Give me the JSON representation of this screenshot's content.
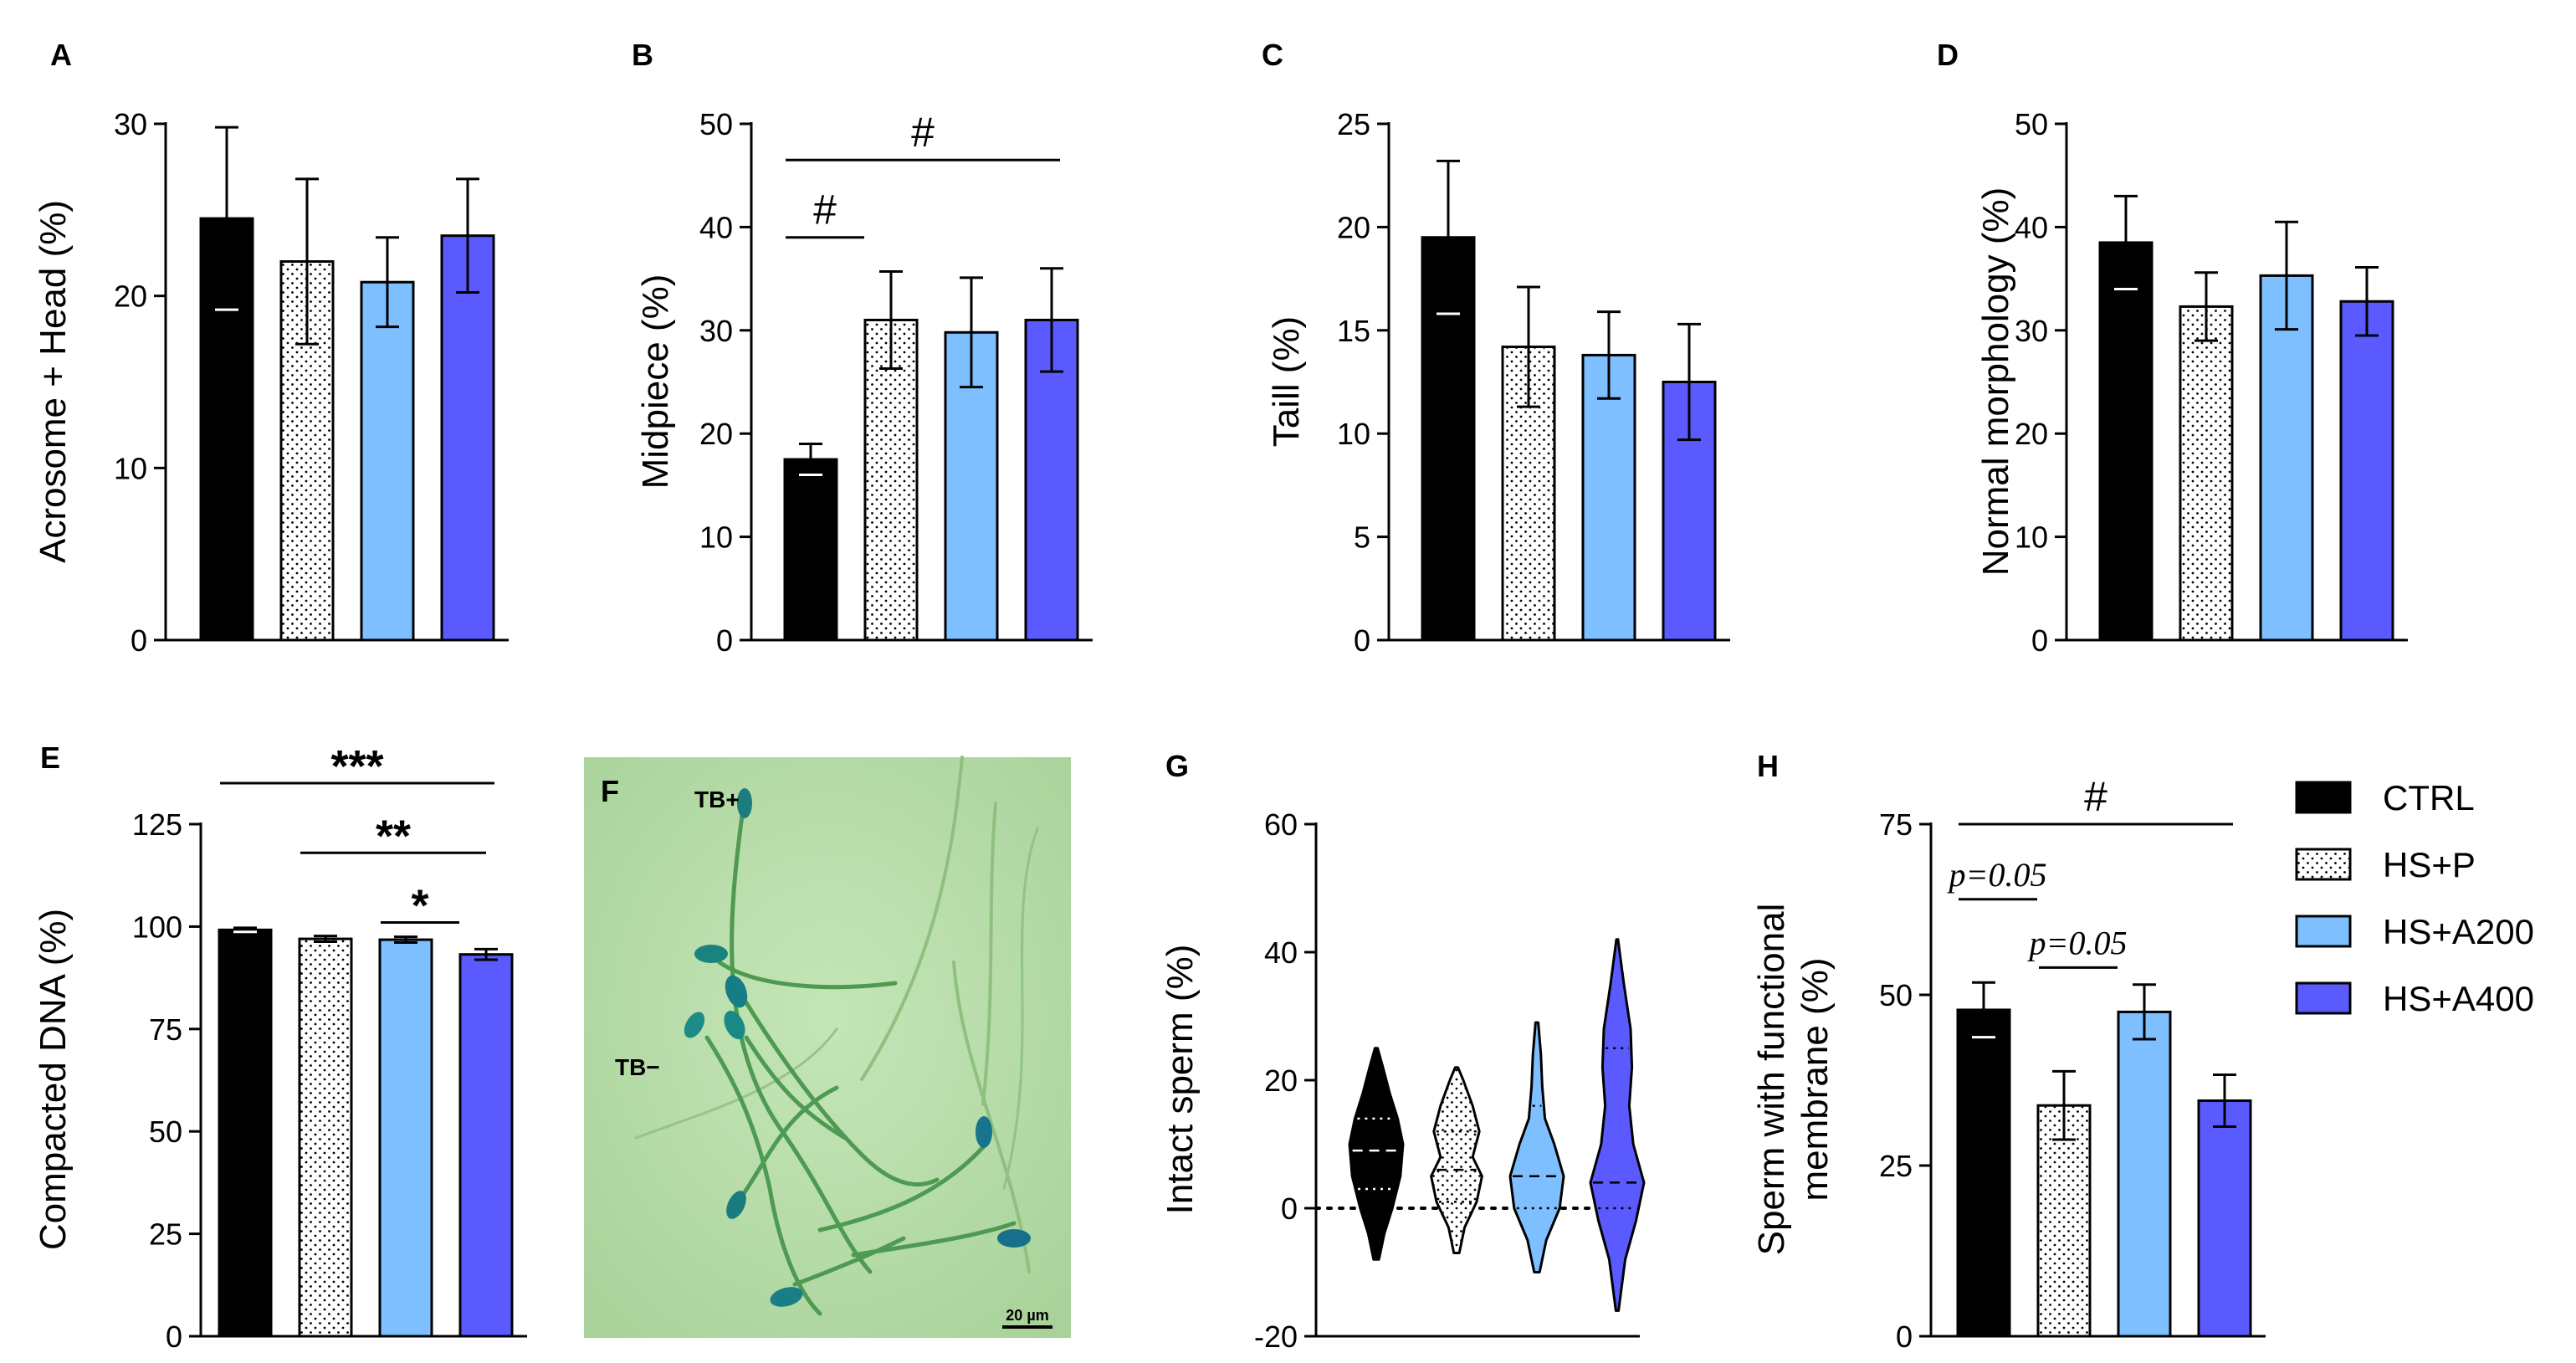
{
  "groups": [
    {
      "name": "CTRL",
      "color": "#000000",
      "pattern": "solid"
    },
    {
      "name": "HS+P",
      "color": "#ffffff",
      "pattern": "dots"
    },
    {
      "name": "HS+A200",
      "color": "#7ebfff",
      "pattern": "solid"
    },
    {
      "name": "HS+A400",
      "color": "#5a5aff",
      "pattern": "solid"
    }
  ],
  "chart_data": [
    {
      "id": "A",
      "panel_label": "A",
      "type": "bar",
      "ylabel": "Acrosome + Head (%)",
      "ylim": [
        0,
        30
      ],
      "ticks": [
        0,
        10,
        20,
        30
      ],
      "values": [
        24.5,
        22,
        20.8,
        23.5
      ],
      "errors": [
        5.3,
        4.8,
        2.6,
        3.3
      ],
      "annotations": []
    },
    {
      "id": "B",
      "panel_label": "B",
      "type": "bar",
      "ylabel": "Midpiece (%)",
      "ylim": [
        0,
        50
      ],
      "ticks": [
        0,
        10,
        20,
        30,
        40,
        50
      ],
      "values": [
        17.5,
        31,
        29.8,
        31
      ],
      "errors": [
        1.5,
        4.7,
        5.3,
        5.0
      ],
      "annotations": [
        {
          "from": 0,
          "to": 1,
          "label": "#",
          "level": 39
        },
        {
          "from": 0,
          "to": 3,
          "label": "#",
          "level": 46.5
        }
      ]
    },
    {
      "id": "C",
      "panel_label": "C",
      "type": "bar",
      "ylabel": "Taill (%)",
      "ylim": [
        0,
        25
      ],
      "ticks": [
        0,
        5,
        10,
        15,
        20,
        25
      ],
      "values": [
        19.5,
        14.2,
        13.8,
        12.5
      ],
      "errors": [
        3.7,
        2.9,
        2.1,
        2.8
      ],
      "annotations": []
    },
    {
      "id": "D",
      "panel_label": "D",
      "type": "bar",
      "ylabel": "Normal morphology (%)",
      "ylim": [
        0,
        50
      ],
      "ticks": [
        0,
        10,
        20,
        30,
        40,
        50
      ],
      "values": [
        38.5,
        32.3,
        35.3,
        32.8
      ],
      "errors": [
        4.5,
        3.3,
        5.2,
        3.3
      ],
      "annotations": []
    },
    {
      "id": "E",
      "panel_label": "E",
      "type": "bar",
      "ylabel": "Compacted DNA (%)",
      "ylim": [
        0,
        125
      ],
      "ticks": [
        0,
        25,
        50,
        75,
        100,
        125
      ],
      "values": [
        99.2,
        97.0,
        96.8,
        93.2
      ],
      "errors": [
        0.5,
        0.7,
        0.7,
        1.3
      ],
      "annotations": [
        {
          "from": 0,
          "to": 3,
          "label": "***",
          "level": 135
        },
        {
          "from": 1,
          "to": 3,
          "label": "**",
          "level": 118
        },
        {
          "from": 2,
          "to": 3,
          "label": "*",
          "level": 101
        }
      ]
    },
    {
      "id": "G",
      "panel_label": "G",
      "type": "violin",
      "ylabel": "Intact sperm (%)",
      "ylim": [
        -20,
        60
      ],
      "ticks": [
        -20,
        0,
        20,
        40,
        60
      ],
      "violins": [
        {
          "min": -8,
          "max": 25,
          "median": 9,
          "q1": 3,
          "q3": 14,
          "profile": [
            [
              -8,
              0.1
            ],
            [
              -4,
              0.3
            ],
            [
              0,
              0.6
            ],
            [
              5,
              0.9
            ],
            [
              10,
              1.0
            ],
            [
              14,
              0.8
            ],
            [
              18,
              0.5
            ],
            [
              22,
              0.25
            ],
            [
              25,
              0.05
            ]
          ]
        },
        {
          "min": -7,
          "max": 22,
          "median": 6,
          "q1": 1,
          "q3": 12,
          "profile": [
            [
              -7,
              0.1
            ],
            [
              -3,
              0.3
            ],
            [
              1,
              0.75
            ],
            [
              5,
              0.95
            ],
            [
              8,
              0.6
            ],
            [
              12,
              0.85
            ],
            [
              16,
              0.6
            ],
            [
              20,
              0.25
            ],
            [
              22,
              0.05
            ]
          ]
        },
        {
          "min": -10,
          "max": 29,
          "median": 5,
          "q1": 0,
          "q3": 16,
          "profile": [
            [
              -10,
              0.1
            ],
            [
              -5,
              0.35
            ],
            [
              0,
              0.85
            ],
            [
              5,
              1.0
            ],
            [
              10,
              0.65
            ],
            [
              14,
              0.3
            ],
            [
              19,
              0.2
            ],
            [
              24,
              0.15
            ],
            [
              29,
              0.05
            ]
          ]
        },
        {
          "min": -16,
          "max": 42,
          "median": 4,
          "q1": 0,
          "q3": 25,
          "profile": [
            [
              -16,
              0.05
            ],
            [
              -8,
              0.3
            ],
            [
              -2,
              0.7
            ],
            [
              4,
              1.0
            ],
            [
              10,
              0.6
            ],
            [
              16,
              0.45
            ],
            [
              22,
              0.55
            ],
            [
              28,
              0.5
            ],
            [
              35,
              0.25
            ],
            [
              42,
              0.03
            ]
          ]
        }
      ]
    },
    {
      "id": "H",
      "panel_label": "H",
      "type": "bar",
      "ylabel_lines": [
        "Sperm with functional",
        "membrane (%)"
      ],
      "ylim": [
        0,
        75
      ],
      "ticks": [
        0,
        25,
        50,
        75
      ],
      "values": [
        47.8,
        33.8,
        47.5,
        34.5
      ],
      "errors": [
        4.0,
        5.0,
        4.0,
        3.8
      ],
      "annotations": [
        {
          "from": 0,
          "to": 3,
          "label": "#",
          "level": 75,
          "style": "sig"
        },
        {
          "from": 0,
          "to": 1,
          "label": "p=0.05",
          "level": 64,
          "style": "italic"
        },
        {
          "from": 1,
          "to": 2,
          "label": "p=0.05",
          "level": 54,
          "style": "italic"
        }
      ]
    }
  ],
  "micrograph": {
    "panel_label": "F",
    "labels": [
      "TB+",
      "TB−"
    ],
    "scale_bar": "20 µm",
    "description_icon": "stained-sperm-micrograph"
  }
}
